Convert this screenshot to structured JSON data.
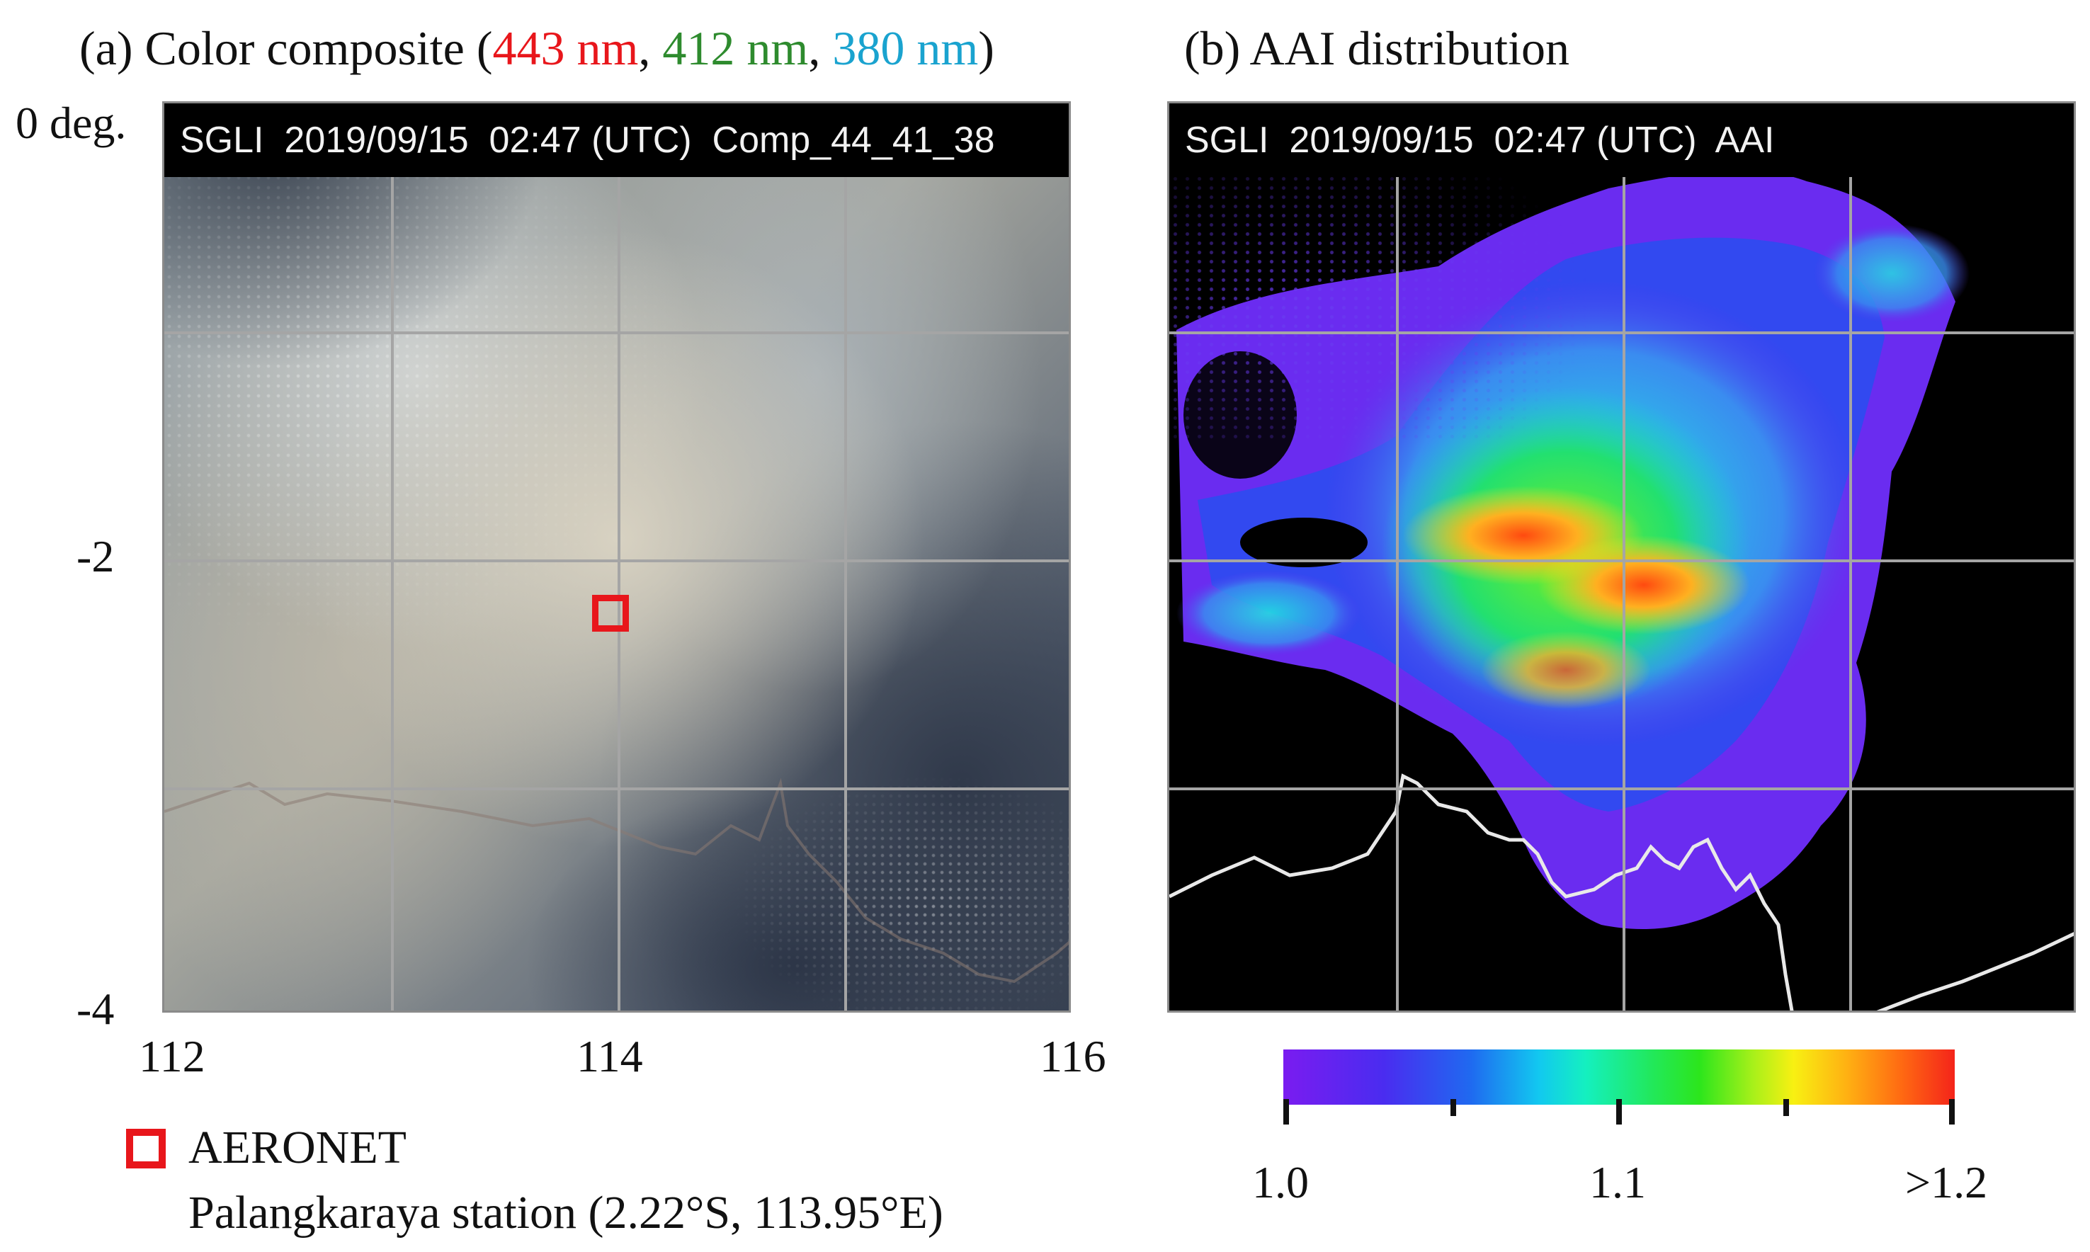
{
  "panel_a": {
    "title_prefix": "(a) Color composite (",
    "title_band_red": "443 nm",
    "title_sep1": ", ",
    "title_band_green": "412 nm",
    "title_sep2": ", ",
    "title_band_blue": "380 nm",
    "title_suffix": ")",
    "banner": "SGLI  2019/09/15  02:47 (UTC)  Comp_44_41_38",
    "y_axis": {
      "top_label": "0 deg.",
      "mid_label": "-2",
      "bottom_label": "-4"
    },
    "x_axis": {
      "labels": [
        "112",
        "114",
        "116"
      ]
    },
    "marker": {
      "label": "AERONET",
      "station": "Palangkaraya station (2.22°S, 113.95°E)",
      "lat": -2.22,
      "lon": 113.95
    }
  },
  "panel_b": {
    "title": "(b) AAI distribution",
    "banner": "SGLI  2019/09/15  02:47 (UTC)  AAI",
    "colorbar": {
      "labels": [
        "1.0",
        "1.1",
        ">1.2"
      ],
      "min": 1.0,
      "max": 1.2
    }
  },
  "colors": {
    "band_red": "#e8161b",
    "band_green": "#2e8b2e",
    "band_blue": "#1aa3cf",
    "marker": "#e8161b",
    "grid": "#a5a5a5",
    "coastline": "#e9e9e9"
  }
}
